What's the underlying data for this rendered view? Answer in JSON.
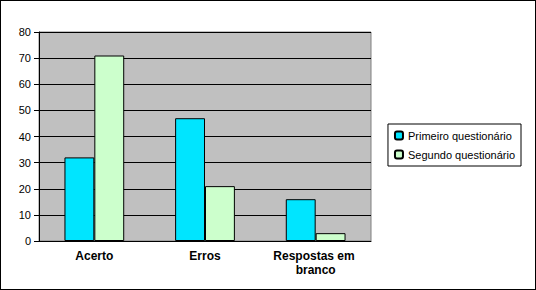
{
  "chart_data": {
    "type": "bar",
    "categories": [
      "Acerto",
      "Erros",
      "Respostas em branco"
    ],
    "series": [
      {
        "name": "Primeiro questionário",
        "color": "#00e5ff",
        "values": [
          32,
          47,
          16
        ]
      },
      {
        "name": "Segundo questionário",
        "color": "#ccffcc",
        "values": [
          71,
          21,
          3
        ]
      }
    ],
    "ylim": [
      0,
      80
    ],
    "yticks": [
      0,
      10,
      20,
      30,
      40,
      50,
      60,
      70,
      80
    ],
    "grid": true,
    "legend": "right"
  }
}
